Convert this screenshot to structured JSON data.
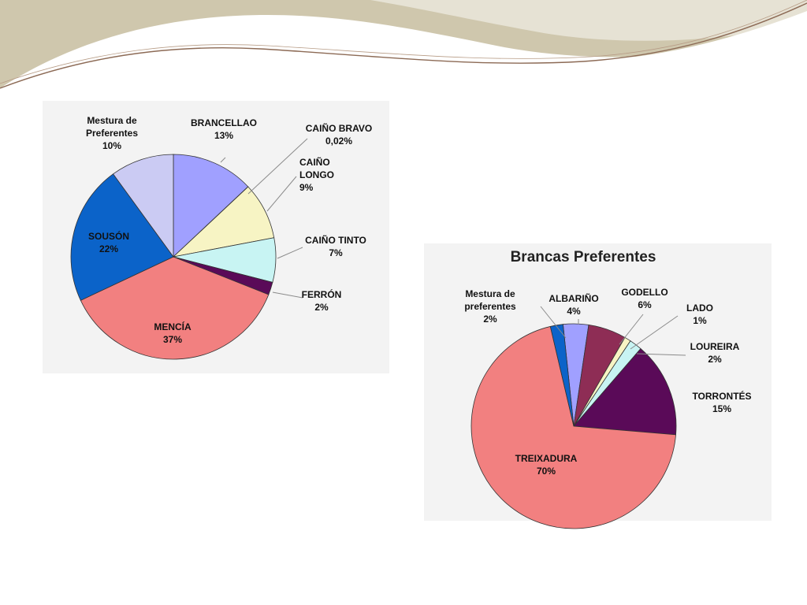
{
  "chart_data": [
    {
      "type": "pie",
      "title": "",
      "start_angle": 0,
      "slices": [
        {
          "label": [
            "BRANCELLAO"
          ],
          "pct": "13%",
          "value": 13,
          "color": "#a0a0ff"
        },
        {
          "label": [
            "CAIÑO BRAVO"
          ],
          "pct": "0,02%",
          "value": 0.02,
          "color": "#5a2456"
        },
        {
          "label": [
            "CAIÑO",
            "LONGO"
          ],
          "pct": "9%",
          "value": 9,
          "color": "#f7f4c4"
        },
        {
          "label": [
            "CAIÑO TINTO"
          ],
          "pct": "7%",
          "value": 7,
          "color": "#c8f4f3"
        },
        {
          "label": [
            "FERRÓN"
          ],
          "pct": "2%",
          "value": 2,
          "color": "#5a0a58"
        },
        {
          "label": [
            "MENCÍA"
          ],
          "pct": "37%",
          "value": 37,
          "color": "#f28080"
        },
        {
          "label": [
            "SOUSÓN"
          ],
          "pct": "22%",
          "value": 22,
          "color": "#0b63c9"
        },
        {
          "label": [
            "Mestura de",
            "Preferentes"
          ],
          "pct": "10%",
          "value": 10,
          "color": "#cbcbf3"
        }
      ]
    },
    {
      "type": "pie",
      "title": "Brancas Preferentes",
      "start_angle": -6,
      "slices": [
        {
          "label": [
            "ALBARIÑO"
          ],
          "pct": "4%",
          "value": 4,
          "color": "#a0a0ff"
        },
        {
          "label": [
            "GODELLO"
          ],
          "pct": "6%",
          "value": 6,
          "color": "#8e2d55"
        },
        {
          "label": [
            "LADO"
          ],
          "pct": "1%",
          "value": 1,
          "color": "#f7f4c4"
        },
        {
          "label": [
            "LOUREIRA"
          ],
          "pct": "2%",
          "value": 2,
          "color": "#c8f4f3"
        },
        {
          "label": [
            "TORRONTÉS"
          ],
          "pct": "15%",
          "value": 15,
          "color": "#5a0a58"
        },
        {
          "label": [
            "TREIXADURA"
          ],
          "pct": "70%",
          "value": 70,
          "color": "#f28080"
        },
        {
          "label": [
            "Mestura de",
            "preferentes"
          ],
          "pct": "2%",
          "value": 2,
          "color": "#0b63c9"
        }
      ]
    }
  ]
}
